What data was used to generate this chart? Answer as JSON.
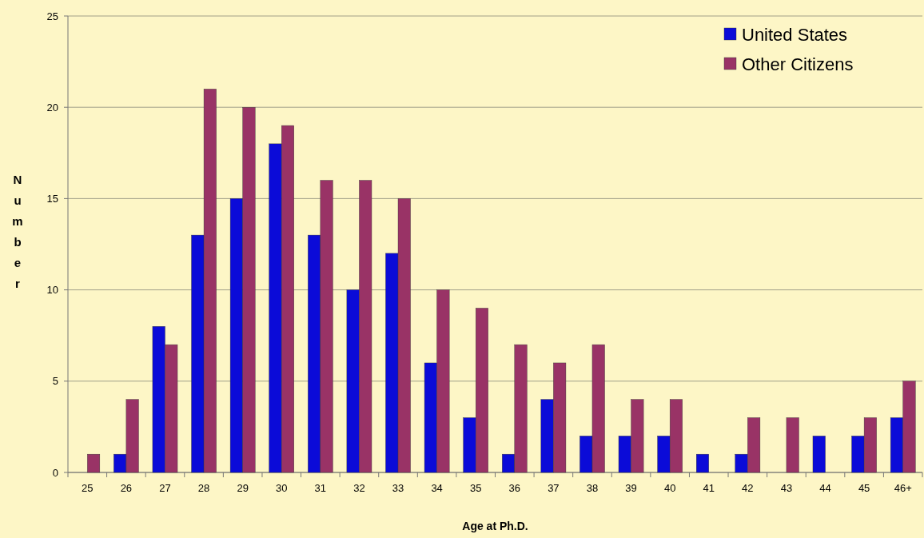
{
  "chart_data": {
    "type": "bar",
    "xlabel": "Age at Ph.D.",
    "ylabel": "Number",
    "categories": [
      "25",
      "26",
      "27",
      "28",
      "29",
      "30",
      "31",
      "32",
      "33",
      "34",
      "35",
      "36",
      "37",
      "38",
      "39",
      "40",
      "41",
      "42",
      "43",
      "44",
      "45",
      "46+"
    ],
    "series": [
      {
        "name": "United States",
        "color": "#0b0bd8",
        "values": [
          0,
          1,
          8,
          13,
          15,
          18,
          13,
          10,
          12,
          6,
          3,
          1,
          4,
          2,
          2,
          2,
          1,
          1,
          0,
          2,
          2,
          3
        ]
      },
      {
        "name": "Other Citizens",
        "color": "#993366",
        "values": [
          1,
          4,
          7,
          21,
          20,
          19,
          16,
          16,
          15,
          10,
          9,
          7,
          6,
          7,
          4,
          4,
          0,
          3,
          3,
          0,
          3,
          5
        ]
      }
    ],
    "ylim": [
      0,
      25
    ],
    "yticks": [
      0,
      5,
      10,
      15,
      20,
      25
    ],
    "grid": "y",
    "legend": "top right"
  }
}
